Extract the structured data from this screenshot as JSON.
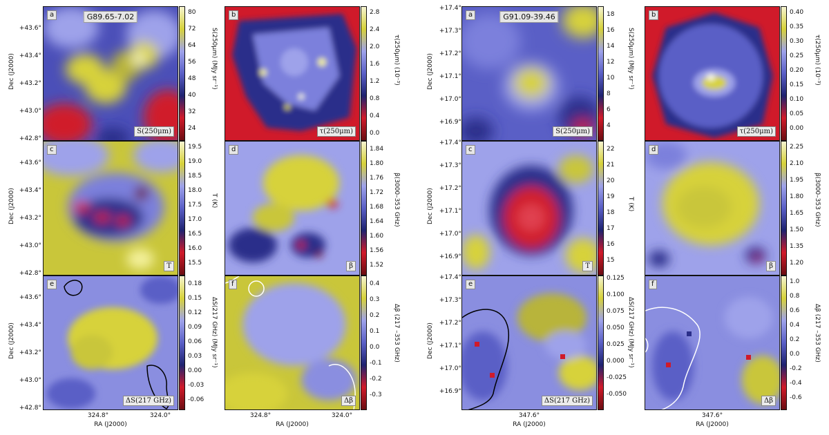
{
  "colors": {
    "yellow": "#d7d23a",
    "lightyellow": "#f3f09a",
    "lavender": "#9ea2ea",
    "blue": "#5a5fc6",
    "navy": "#1f2370",
    "red": "#d01a2a",
    "darkred": "#6b0d12"
  },
  "left": {
    "title": "G89.65-7.02",
    "dec_label": "Dec (J2000)",
    "ra_label": "RA (J2000)",
    "dec_ticks": [
      "+43.6°",
      "+43.4°",
      "+43.2°",
      "+43.0°",
      "+42.8°"
    ],
    "ra_ticks": [
      "324.8°",
      "324.0°"
    ],
    "panels": [
      {
        "letter": "a",
        "label": "S(250μm)",
        "cbar_ticks": [
          "80",
          "72",
          "64",
          "56",
          "48",
          "40",
          "32",
          "24"
        ],
        "cbar_label": "S(250μm) (MJy sr⁻¹)"
      },
      {
        "letter": "b",
        "label": "τ(250μm)",
        "cbar_ticks": [
          "2.8",
          "2.4",
          "2.0",
          "1.6",
          "1.2",
          "0.8",
          "0.4",
          "0.0"
        ],
        "cbar_label": "τ(250μm) (10⁻³)"
      },
      {
        "letter": "c",
        "label": "T",
        "cbar_ticks": [
          "19.5",
          "19.0",
          "18.5",
          "18.0",
          "17.5",
          "17.0",
          "16.5",
          "16.0",
          "15.5"
        ],
        "cbar_label": "T (K)"
      },
      {
        "letter": "d",
        "label": "β",
        "cbar_ticks": [
          "1.84",
          "1.80",
          "1.76",
          "1.72",
          "1.68",
          "1.64",
          "1.60",
          "1.56",
          "1.52"
        ],
        "cbar_label": "β(3000–353 GHz)"
      },
      {
        "letter": "e",
        "label": "ΔS(217 GHz)",
        "cbar_ticks": [
          "0.18",
          "0.15",
          "0.12",
          "0.09",
          "0.06",
          "0.03",
          "0.00",
          "-0.03",
          "-0.06"
        ],
        "cbar_label": "ΔS(217 GHz) (MJy sr⁻¹)"
      },
      {
        "letter": "f",
        "label": "Δβ",
        "cbar_ticks": [
          "0.4",
          "0.3",
          "0.2",
          "0.1",
          "0.0",
          "-0.1",
          "-0.2",
          "-0.3"
        ],
        "cbar_label": "Δβ (217 –353 GHz)"
      }
    ]
  },
  "right": {
    "title": "G91.09-39.46",
    "dec_label": "Dec (J2000)",
    "ra_label": "RA (J2000)",
    "dec_ticks": [
      "+17.4°",
      "+17.3°",
      "+17.2°",
      "+17.1°",
      "+17.0°",
      "+16.9°"
    ],
    "ra_ticks": [
      "347.6°"
    ],
    "panels": [
      {
        "letter": "a",
        "label": "S(250μm)",
        "cbar_ticks": [
          "18",
          "16",
          "14",
          "12",
          "10",
          "8",
          "6",
          "4"
        ],
        "cbar_label": "S(250μm) (MJy sr⁻¹)"
      },
      {
        "letter": "b",
        "label": "τ(250μm)",
        "cbar_ticks": [
          "0.40",
          "0.35",
          "0.30",
          "0.25",
          "0.20",
          "0.15",
          "0.10",
          "0.05",
          "0.00"
        ],
        "cbar_label": "τ(250μm) (10⁻³)"
      },
      {
        "letter": "c",
        "label": "T",
        "cbar_ticks": [
          "22",
          "21",
          "20",
          "19",
          "18",
          "17",
          "16",
          "15"
        ],
        "cbar_label": "T (K)"
      },
      {
        "letter": "d",
        "label": "β",
        "cbar_ticks": [
          "2.25",
          "2.10",
          "1.95",
          "1.80",
          "1.65",
          "1.50",
          "1.35",
          "1.20"
        ],
        "cbar_label": "β(3000–353 GHz)"
      },
      {
        "letter": "e",
        "label": "ΔS(217 GHz)",
        "cbar_ticks": [
          "0.125",
          "0.100",
          "0.075",
          "0.050",
          "0.025",
          "0.000",
          "-0.025",
          "-0.050"
        ],
        "cbar_label": "ΔS(217 GHz) (MJy sr⁻¹)"
      },
      {
        "letter": "f",
        "label": "Δβ",
        "cbar_ticks": [
          "1.0",
          "0.8",
          "0.6",
          "0.4",
          "0.2",
          "0.0",
          "-0.2",
          "-0.4",
          "-0.6"
        ],
        "cbar_label": "Δβ (217 –353 GHz)"
      }
    ]
  }
}
